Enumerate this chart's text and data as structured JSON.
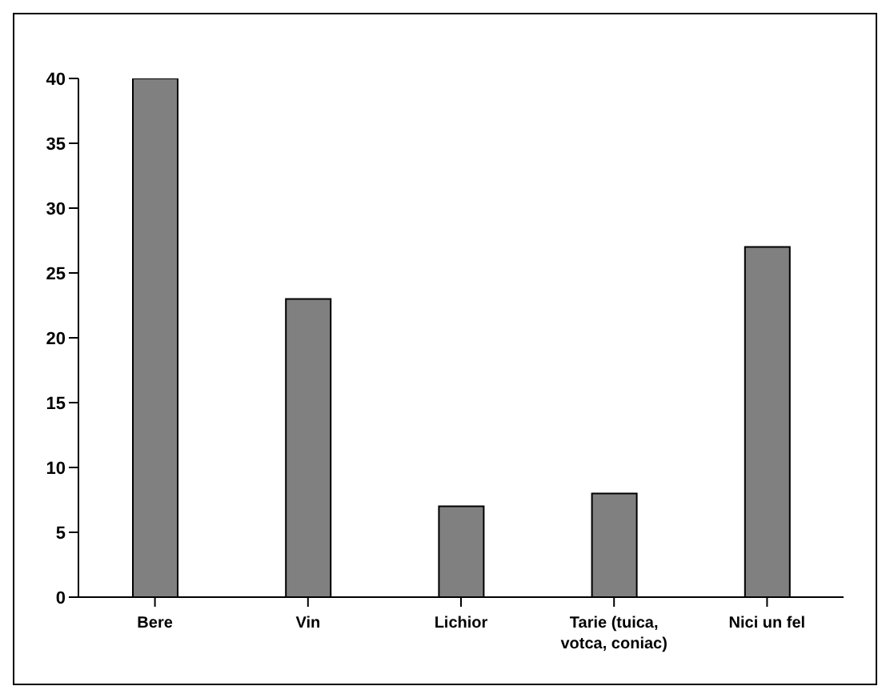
{
  "chart_data": {
    "type": "bar",
    "categories": [
      "Bere",
      "Vin",
      "Lichior",
      "Tarie (tuica, votca, coniac)",
      "Nici un fel"
    ],
    "values": [
      40,
      23,
      7,
      8,
      27
    ],
    "color": "#808080",
    "ylim": [
      0,
      40
    ],
    "yticks": [
      0,
      5,
      10,
      15,
      20,
      25,
      30,
      35,
      40
    ],
    "grid": false
  }
}
